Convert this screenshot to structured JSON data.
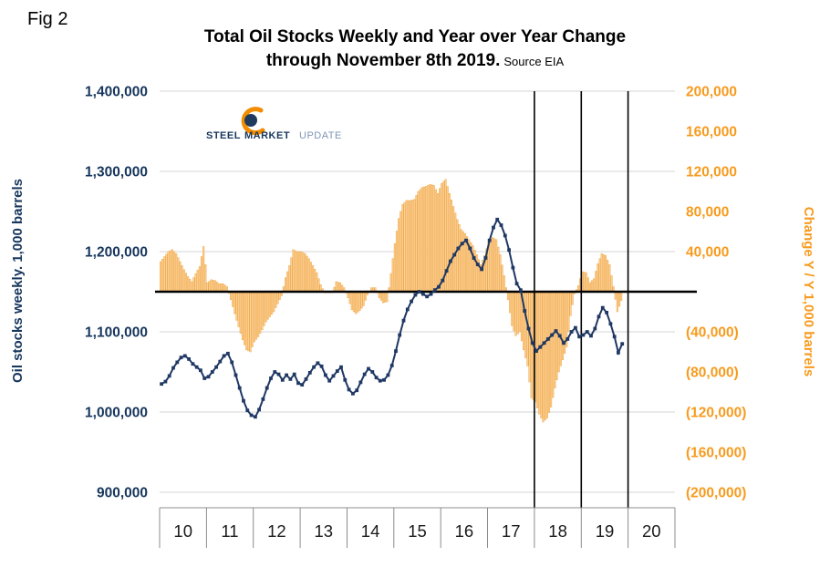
{
  "fig_label": "Fig 2",
  "title": {
    "line1": "Total Oil Stocks Weekly and Year over Year Change",
    "line2": "through November 8th 2019.",
    "source": "Source EIA"
  },
  "logo": {
    "steel": "STEEL",
    "market": "MARKET",
    "update": "UPDATE"
  },
  "colors": {
    "navy_text": "#17365D",
    "line_navy": "#203864",
    "orange_text": "#F79B1E",
    "bar_fill": "#FBD096",
    "bar_edge": "#F0A848",
    "gridline": "#D6D6D6",
    "reference_black": "#000000"
  },
  "chart_data": {
    "type": "combo",
    "title": "Total Oil Stocks Weekly and Year over Year Change through November 8th 2019.",
    "source": "Source EIA",
    "grid": "horizontal",
    "x": {
      "start": "2010-01",
      "end": "2019-11",
      "frequency": "monthly (approximation of weekly EIA data)",
      "tick_labels": [
        "10",
        "11",
        "12",
        "13",
        "14",
        "15",
        "16",
        "17",
        "18",
        "19",
        "20"
      ]
    },
    "left_axis": {
      "label": "Oil stocks weekly. 1,000 barrels",
      "range": [
        900000,
        1400000
      ],
      "tick_interval": 100000,
      "ticks": [
        "1,400,000",
        "1,300,000",
        "1,200,000",
        "1,100,000",
        "1,000,000",
        "900,000"
      ],
      "tick_values": [
        1400000,
        1300000,
        1200000,
        1100000,
        1000000,
        900000
      ]
    },
    "right_axis": {
      "label": "Change Y / Y 1,000 barrels",
      "range": [
        -200000,
        200000
      ],
      "tick_interval": 40000,
      "ticks": [
        "200,000",
        "160,000",
        "120,000",
        "80,000",
        "40,000",
        "(40,000)",
        "(80,000)",
        "(120,000)",
        "(160,000)",
        "(200,000)"
      ],
      "tick_values": [
        200000,
        160000,
        120000,
        80000,
        40000,
        -40000,
        -80000,
        -120000,
        -160000,
        -200000
      ]
    },
    "series": [
      {
        "name": "Oil stocks weekly",
        "type": "line",
        "axis": "left",
        "color": "#203864",
        "values": [
          1035000,
          1038000,
          1045000,
          1055000,
          1062000,
          1068000,
          1070000,
          1066000,
          1060000,
          1056000,
          1052000,
          1042000,
          1044000,
          1050000,
          1056000,
          1063000,
          1070000,
          1073000,
          1062000,
          1046000,
          1030000,
          1014000,
          1002000,
          996000,
          994000,
          1003000,
          1016000,
          1030000,
          1042000,
          1050000,
          1047000,
          1040000,
          1046000,
          1041000,
          1047000,
          1036000,
          1034000,
          1041000,
          1049000,
          1056000,
          1061000,
          1057000,
          1046000,
          1039000,
          1045000,
          1051000,
          1056000,
          1040000,
          1028000,
          1023000,
          1027000,
          1037000,
          1047000,
          1054000,
          1050000,
          1043000,
          1039000,
          1040000,
          1046000,
          1058000,
          1076000,
          1096000,
          1114000,
          1128000,
          1138000,
          1146000,
          1150000,
          1147000,
          1144000,
          1147000,
          1152000,
          1156000,
          1164000,
          1176000,
          1188000,
          1196000,
          1204000,
          1210000,
          1214000,
          1204000,
          1192000,
          1184000,
          1178000,
          1192000,
          1214000,
          1230000,
          1240000,
          1233000,
          1220000,
          1202000,
          1180000,
          1160000,
          1152000,
          1126000,
          1104000,
          1086000,
          1076000,
          1081000,
          1086000,
          1091000,
          1096000,
          1101000,
          1095000,
          1086000,
          1091000,
          1100000,
          1105000,
          1094000,
          1096000,
          1100000,
          1095000,
          1104000,
          1119000,
          1130000,
          1124000,
          1110000,
          1094000,
          1074000,
          1085000
        ]
      },
      {
        "name": "Change Y / Y",
        "type": "bar",
        "axis": "right",
        "color": "#FBD096",
        "values": [
          30000,
          35000,
          40000,
          42000,
          38000,
          30000,
          22000,
          15000,
          10000,
          18000,
          25000,
          45000,
          9000,
          12000,
          11000,
          8000,
          8000,
          5000,
          -8000,
          -22000,
          -35000,
          -48000,
          -58000,
          -60000,
          -50000,
          -45000,
          -38000,
          -30000,
          -25000,
          -20000,
          -12000,
          -4000,
          14000,
          26000,
          42000,
          40000,
          40000,
          38000,
          33000,
          26000,
          19000,
          7000,
          -1000,
          -1000,
          -1000,
          10000,
          9000,
          4000,
          -6000,
          -18000,
          -22000,
          -19000,
          -14000,
          -3000,
          4000,
          4000,
          -6000,
          -11000,
          -10000,
          18000,
          48000,
          73000,
          87000,
          91000,
          91000,
          92000,
          100000,
          104000,
          105000,
          107000,
          106000,
          98000,
          108000,
          112000,
          98000,
          85000,
          72000,
          62000,
          58000,
          52000,
          46000,
          37000,
          27000,
          36000,
          50000,
          54000,
          52000,
          37000,
          16000,
          -8000,
          -34000,
          -44000,
          -40000,
          -58000,
          -74000,
          -106000,
          -110000,
          -122000,
          -130000,
          -126000,
          -115000,
          -96000,
          -80000,
          -68000,
          -55000,
          -24000,
          -2000,
          6000,
          20000,
          19000,
          9000,
          13000,
          28000,
          38000,
          36000,
          27000,
          5000,
          -20000,
          -9000
        ]
      }
    ],
    "annotations": {
      "zero_reference_line_right_axis": 0,
      "zero_line_left_axis_equivalent": 1150000,
      "vertical_line_years": [
        2018,
        2019,
        2020
      ]
    }
  }
}
